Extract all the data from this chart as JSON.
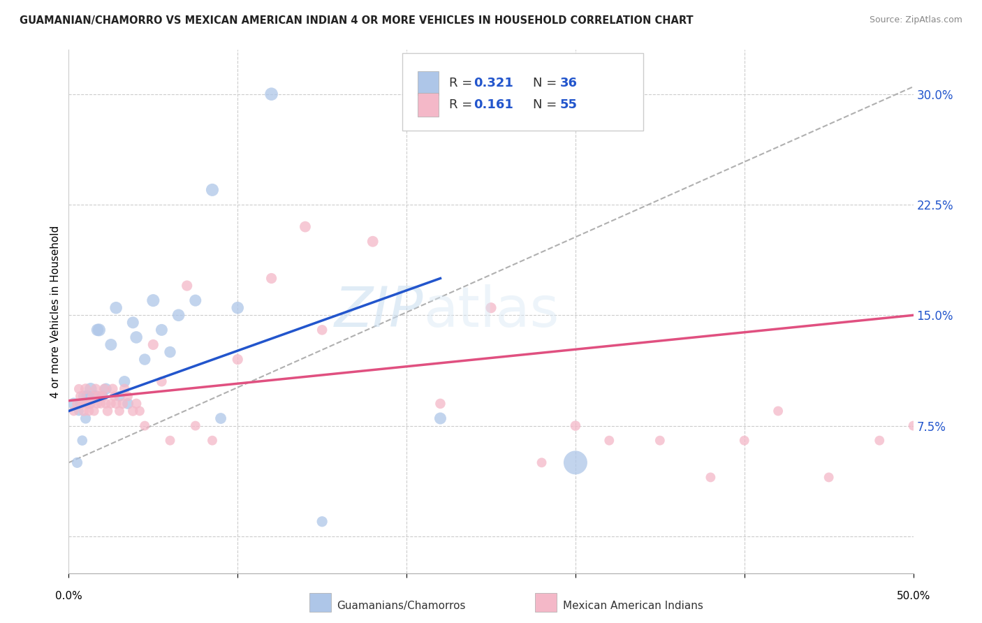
{
  "title": "GUAMANIAN/CHAMORRO VS MEXICAN AMERICAN INDIAN 4 OR MORE VEHICLES IN HOUSEHOLD CORRELATION CHART",
  "source": "Source: ZipAtlas.com",
  "ylabel": "4 or more Vehicles in Household",
  "xlim": [
    0.0,
    0.5
  ],
  "ylim": [
    -0.025,
    0.33
  ],
  "yticks": [
    0.0,
    0.075,
    0.15,
    0.225,
    0.3
  ],
  "ytick_labels": [
    "",
    "7.5%",
    "15.0%",
    "22.5%",
    "30.0%"
  ],
  "blue_color": "#aec6e8",
  "pink_color": "#f4b8c8",
  "blue_line_color": "#2255cc",
  "pink_line_color": "#e05080",
  "dashed_line_color": "#b0b0b0",
  "watermark": "ZIPatlas",
  "guamanian_x": [
    0.003,
    0.005,
    0.006,
    0.007,
    0.008,
    0.009,
    0.01,
    0.011,
    0.012,
    0.013,
    0.015,
    0.016,
    0.017,
    0.018,
    0.02,
    0.022,
    0.025,
    0.028,
    0.03,
    0.033,
    0.035,
    0.038,
    0.04,
    0.045,
    0.05,
    0.055,
    0.06,
    0.065,
    0.075,
    0.085,
    0.09,
    0.1,
    0.12,
    0.15,
    0.22,
    0.3
  ],
  "guamanian_y": [
    0.09,
    0.05,
    0.085,
    0.09,
    0.065,
    0.095,
    0.08,
    0.095,
    0.09,
    0.1,
    0.095,
    0.095,
    0.14,
    0.14,
    0.095,
    0.1,
    0.13,
    0.155,
    0.095,
    0.105,
    0.09,
    0.145,
    0.135,
    0.12,
    0.16,
    0.14,
    0.125,
    0.15,
    0.16,
    0.235,
    0.08,
    0.155,
    0.3,
    0.01,
    0.08,
    0.05
  ],
  "guamanian_sizes": [
    150,
    120,
    100,
    130,
    110,
    140,
    120,
    150,
    130,
    160,
    140,
    150,
    160,
    170,
    130,
    140,
    150,
    160,
    120,
    140,
    130,
    150,
    160,
    140,
    170,
    150,
    140,
    160,
    150,
    170,
    130,
    160,
    180,
    120,
    150,
    600
  ],
  "mexican_x": [
    0.003,
    0.005,
    0.006,
    0.007,
    0.008,
    0.009,
    0.01,
    0.011,
    0.012,
    0.013,
    0.014,
    0.015,
    0.016,
    0.017,
    0.018,
    0.019,
    0.02,
    0.021,
    0.022,
    0.023,
    0.025,
    0.026,
    0.027,
    0.028,
    0.03,
    0.032,
    0.033,
    0.035,
    0.038,
    0.04,
    0.042,
    0.045,
    0.05,
    0.055,
    0.06,
    0.07,
    0.075,
    0.085,
    0.1,
    0.12,
    0.14,
    0.15,
    0.18,
    0.22,
    0.25,
    0.28,
    0.3,
    0.32,
    0.35,
    0.38,
    0.4,
    0.42,
    0.45,
    0.48,
    0.5
  ],
  "mexican_y": [
    0.085,
    0.09,
    0.1,
    0.095,
    0.09,
    0.085,
    0.1,
    0.09,
    0.085,
    0.09,
    0.095,
    0.085,
    0.1,
    0.09,
    0.095,
    0.09,
    0.095,
    0.1,
    0.09,
    0.085,
    0.09,
    0.1,
    0.095,
    0.09,
    0.085,
    0.09,
    0.1,
    0.095,
    0.085,
    0.09,
    0.085,
    0.075,
    0.13,
    0.105,
    0.065,
    0.17,
    0.075,
    0.065,
    0.12,
    0.175,
    0.21,
    0.14,
    0.2,
    0.09,
    0.155,
    0.05,
    0.075,
    0.065,
    0.065,
    0.04,
    0.065,
    0.085,
    0.04,
    0.065,
    0.075
  ],
  "mexican_sizes": [
    100,
    110,
    100,
    110,
    100,
    110,
    120,
    110,
    100,
    110,
    110,
    100,
    110,
    100,
    110,
    100,
    110,
    110,
    100,
    110,
    100,
    110,
    100,
    110,
    100,
    110,
    110,
    100,
    110,
    110,
    100,
    100,
    120,
    110,
    100,
    120,
    100,
    100,
    120,
    120,
    130,
    110,
    130,
    110,
    120,
    100,
    110,
    100,
    100,
    100,
    100,
    100,
    100,
    100,
    100
  ],
  "blue_line_x": [
    0.0,
    0.22
  ],
  "blue_line_y_start": 0.085,
  "blue_line_y_end": 0.175,
  "dashed_line_x": [
    0.0,
    0.5
  ],
  "dashed_line_y_start": 0.05,
  "dashed_line_y_end": 0.305,
  "pink_line_x": [
    0.0,
    0.5
  ],
  "pink_line_y_start": 0.092,
  "pink_line_y_end": 0.15
}
